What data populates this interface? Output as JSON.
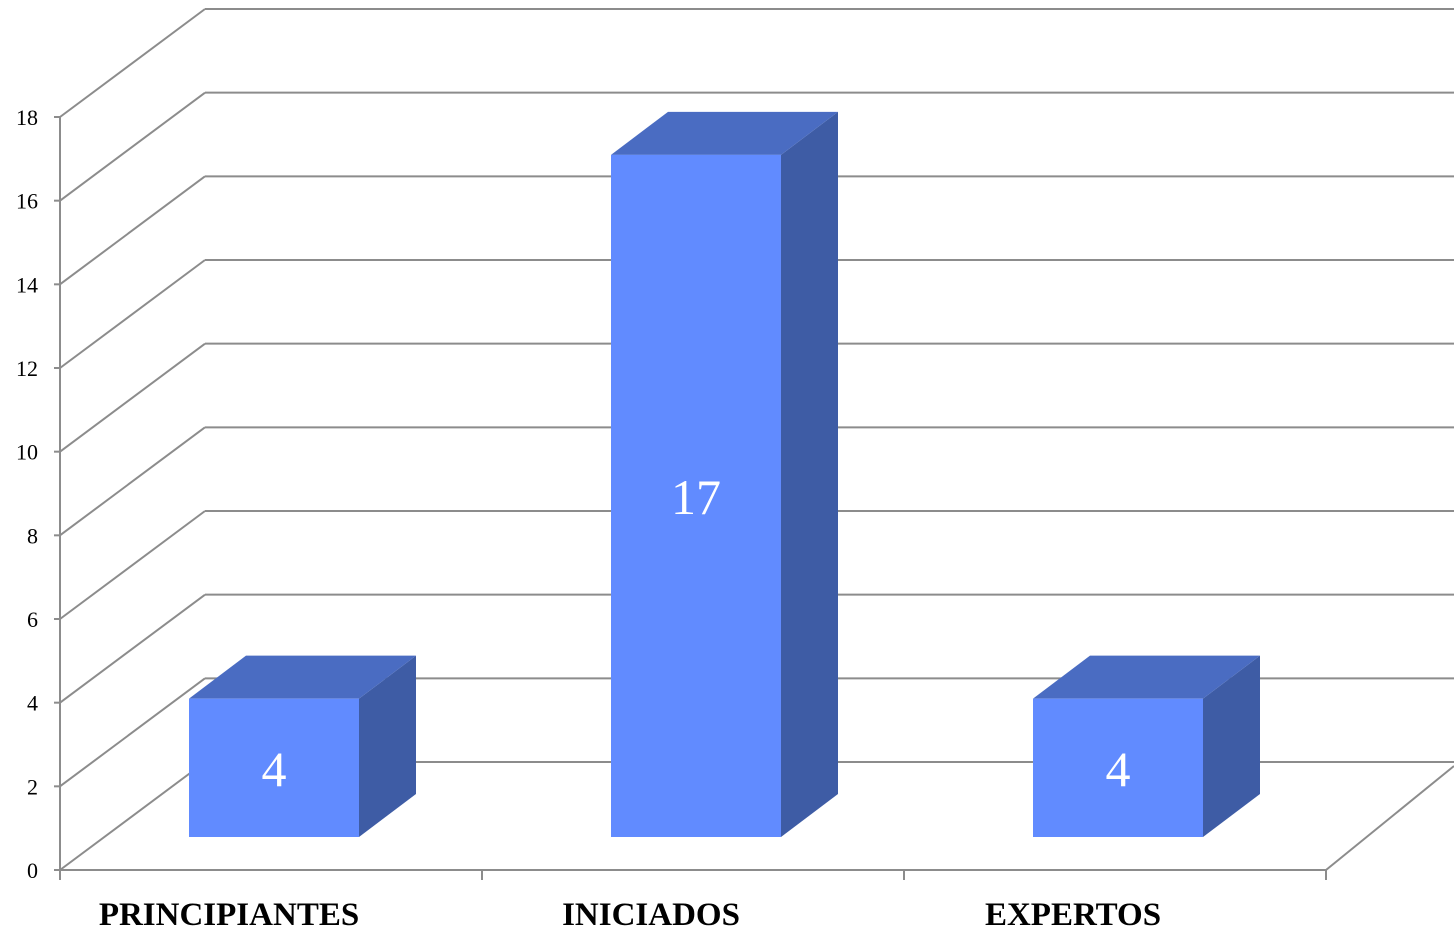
{
  "chart_data": {
    "type": "bar",
    "style": "3d-clustered-column",
    "title": "",
    "xlabel": "",
    "ylabel": "",
    "categories": [
      "PRINCIPIANTES",
      "INICIADOS",
      "EXPERTOS"
    ],
    "values": [
      4,
      17,
      4
    ],
    "data_labels": [
      "4",
      "17",
      "4"
    ],
    "ylim": [
      0,
      18
    ],
    "yticks": [
      0,
      2,
      4,
      6,
      8,
      10,
      12,
      14,
      16,
      18
    ],
    "grid": true,
    "legend": "none",
    "colors": {
      "bar_front": "#618BFF",
      "bar_top": "#4A6CC2",
      "bar_side": "#3E5CA5",
      "gridline": "#8C8C8C",
      "data_label": "#FFFFFF"
    }
  }
}
